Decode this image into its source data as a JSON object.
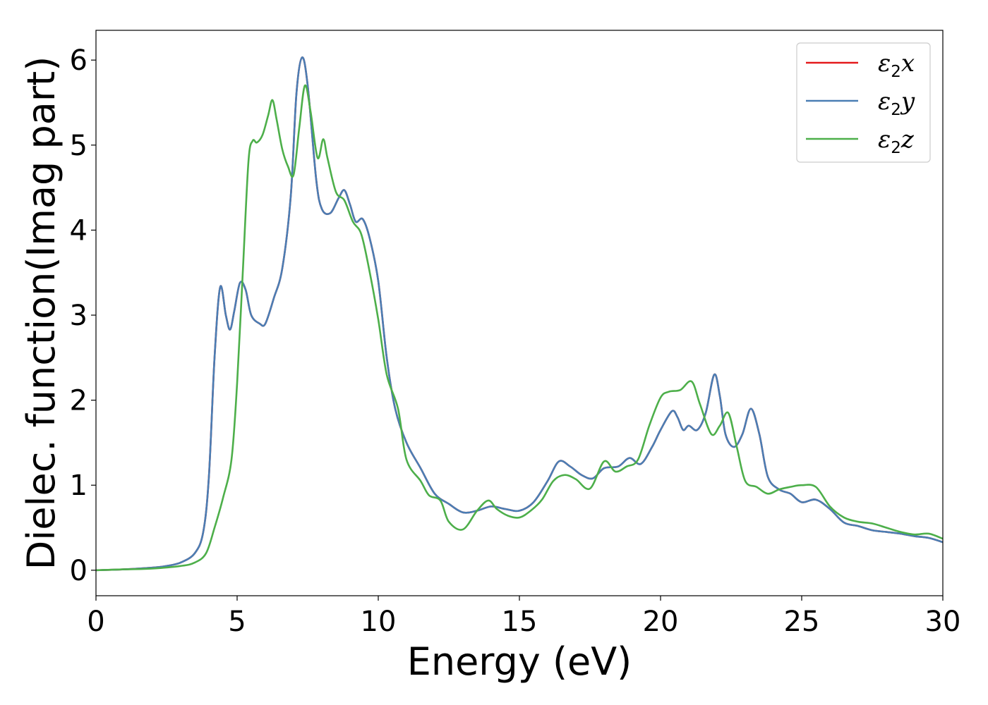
{
  "chart_data": {
    "type": "line",
    "xlabel": "Energy (eV)",
    "ylabel": "Dielec. function(Imag part)",
    "xlim": [
      0,
      30
    ],
    "ylim": [
      -0.3,
      6.35
    ],
    "xticks": [
      0,
      5,
      10,
      15,
      20,
      25,
      30
    ],
    "yticks": [
      0,
      1,
      2,
      3,
      4,
      5,
      6
    ],
    "grid": false,
    "legend_position": "top-right",
    "series": [
      {
        "name": "ε2x",
        "legend_symbol": "ε",
        "legend_sub": "2",
        "legend_var": "x",
        "color": "#e41a1c",
        "points": [
          [
            0,
            0.0
          ],
          [
            1,
            0.01
          ],
          [
            2,
            0.03
          ],
          [
            2.5,
            0.05
          ],
          [
            3,
            0.09
          ],
          [
            3.5,
            0.2
          ],
          [
            3.8,
            0.45
          ],
          [
            4.0,
            1.1
          ],
          [
            4.2,
            2.5
          ],
          [
            4.4,
            3.33
          ],
          [
            4.6,
            3.0
          ],
          [
            4.75,
            2.83
          ],
          [
            4.9,
            3.05
          ],
          [
            5.1,
            3.38
          ],
          [
            5.3,
            3.3
          ],
          [
            5.5,
            3.0
          ],
          [
            5.8,
            2.9
          ],
          [
            6.0,
            2.9
          ],
          [
            6.3,
            3.2
          ],
          [
            6.6,
            3.55
          ],
          [
            6.9,
            4.4
          ],
          [
            7.1,
            5.6
          ],
          [
            7.3,
            6.03
          ],
          [
            7.5,
            5.7
          ],
          [
            7.8,
            4.6
          ],
          [
            8.0,
            4.25
          ],
          [
            8.3,
            4.2
          ],
          [
            8.6,
            4.38
          ],
          [
            8.8,
            4.47
          ],
          [
            9.0,
            4.3
          ],
          [
            9.2,
            4.1
          ],
          [
            9.45,
            4.13
          ],
          [
            9.7,
            3.9
          ],
          [
            10.0,
            3.4
          ],
          [
            10.3,
            2.5
          ],
          [
            10.6,
            1.9
          ],
          [
            11.0,
            1.5
          ],
          [
            11.5,
            1.2
          ],
          [
            12.0,
            0.9
          ],
          [
            12.5,
            0.78
          ],
          [
            13.0,
            0.68
          ],
          [
            13.5,
            0.7
          ],
          [
            14.0,
            0.75
          ],
          [
            14.5,
            0.72
          ],
          [
            15.0,
            0.7
          ],
          [
            15.5,
            0.8
          ],
          [
            16.0,
            1.05
          ],
          [
            16.4,
            1.28
          ],
          [
            16.8,
            1.22
          ],
          [
            17.2,
            1.12
          ],
          [
            17.6,
            1.08
          ],
          [
            18.0,
            1.2
          ],
          [
            18.5,
            1.22
          ],
          [
            18.9,
            1.32
          ],
          [
            19.3,
            1.25
          ],
          [
            19.7,
            1.45
          ],
          [
            20.0,
            1.65
          ],
          [
            20.4,
            1.87
          ],
          [
            20.6,
            1.8
          ],
          [
            20.8,
            1.65
          ],
          [
            21.0,
            1.7
          ],
          [
            21.3,
            1.65
          ],
          [
            21.6,
            1.85
          ],
          [
            21.9,
            2.3
          ],
          [
            22.1,
            2.05
          ],
          [
            22.3,
            1.6
          ],
          [
            22.6,
            1.45
          ],
          [
            22.9,
            1.6
          ],
          [
            23.2,
            1.9
          ],
          [
            23.5,
            1.6
          ],
          [
            23.8,
            1.1
          ],
          [
            24.2,
            0.95
          ],
          [
            24.6,
            0.9
          ],
          [
            25.0,
            0.8
          ],
          [
            25.5,
            0.83
          ],
          [
            26.0,
            0.72
          ],
          [
            26.5,
            0.56
          ],
          [
            27.0,
            0.52
          ],
          [
            27.5,
            0.47
          ],
          [
            28.0,
            0.45
          ],
          [
            28.5,
            0.43
          ],
          [
            29.0,
            0.4
          ],
          [
            29.5,
            0.38
          ],
          [
            30.0,
            0.33
          ]
        ]
      },
      {
        "name": "ε2y",
        "legend_symbol": "ε",
        "legend_sub": "2",
        "legend_var": "y",
        "color": "#4a7eb4",
        "points": [
          [
            0,
            0.0
          ],
          [
            1,
            0.01
          ],
          [
            2,
            0.03
          ],
          [
            2.5,
            0.05
          ],
          [
            3,
            0.09
          ],
          [
            3.5,
            0.2
          ],
          [
            3.8,
            0.45
          ],
          [
            4.0,
            1.1
          ],
          [
            4.2,
            2.5
          ],
          [
            4.4,
            3.33
          ],
          [
            4.6,
            3.0
          ],
          [
            4.75,
            2.83
          ],
          [
            4.9,
            3.05
          ],
          [
            5.1,
            3.38
          ],
          [
            5.3,
            3.3
          ],
          [
            5.5,
            3.0
          ],
          [
            5.8,
            2.9
          ],
          [
            6.0,
            2.9
          ],
          [
            6.3,
            3.2
          ],
          [
            6.6,
            3.55
          ],
          [
            6.9,
            4.4
          ],
          [
            7.1,
            5.6
          ],
          [
            7.3,
            6.03
          ],
          [
            7.5,
            5.7
          ],
          [
            7.8,
            4.6
          ],
          [
            8.0,
            4.25
          ],
          [
            8.3,
            4.2
          ],
          [
            8.6,
            4.38
          ],
          [
            8.8,
            4.47
          ],
          [
            9.0,
            4.3
          ],
          [
            9.2,
            4.1
          ],
          [
            9.45,
            4.13
          ],
          [
            9.7,
            3.9
          ],
          [
            10.0,
            3.4
          ],
          [
            10.3,
            2.5
          ],
          [
            10.6,
            1.9
          ],
          [
            11.0,
            1.5
          ],
          [
            11.5,
            1.2
          ],
          [
            12.0,
            0.9
          ],
          [
            12.5,
            0.78
          ],
          [
            13.0,
            0.68
          ],
          [
            13.5,
            0.7
          ],
          [
            14.0,
            0.75
          ],
          [
            14.5,
            0.72
          ],
          [
            15.0,
            0.7
          ],
          [
            15.5,
            0.8
          ],
          [
            16.0,
            1.05
          ],
          [
            16.4,
            1.28
          ],
          [
            16.8,
            1.22
          ],
          [
            17.2,
            1.12
          ],
          [
            17.6,
            1.08
          ],
          [
            18.0,
            1.2
          ],
          [
            18.5,
            1.22
          ],
          [
            18.9,
            1.32
          ],
          [
            19.3,
            1.25
          ],
          [
            19.7,
            1.45
          ],
          [
            20.0,
            1.65
          ],
          [
            20.4,
            1.87
          ],
          [
            20.6,
            1.8
          ],
          [
            20.8,
            1.65
          ],
          [
            21.0,
            1.7
          ],
          [
            21.3,
            1.65
          ],
          [
            21.6,
            1.85
          ],
          [
            21.9,
            2.3
          ],
          [
            22.1,
            2.05
          ],
          [
            22.3,
            1.6
          ],
          [
            22.6,
            1.45
          ],
          [
            22.9,
            1.6
          ],
          [
            23.2,
            1.9
          ],
          [
            23.5,
            1.6
          ],
          [
            23.8,
            1.1
          ],
          [
            24.2,
            0.95
          ],
          [
            24.6,
            0.9
          ],
          [
            25.0,
            0.8
          ],
          [
            25.5,
            0.83
          ],
          [
            26.0,
            0.72
          ],
          [
            26.5,
            0.56
          ],
          [
            27.0,
            0.52
          ],
          [
            27.5,
            0.47
          ],
          [
            28.0,
            0.45
          ],
          [
            28.5,
            0.43
          ],
          [
            29.0,
            0.4
          ],
          [
            29.5,
            0.38
          ],
          [
            30.0,
            0.33
          ]
        ]
      },
      {
        "name": "ε2z",
        "legend_symbol": "ε",
        "legend_sub": "2",
        "legend_var": "z",
        "color": "#4daf4a",
        "points": [
          [
            0,
            0.0
          ],
          [
            1,
            0.01
          ],
          [
            2,
            0.02
          ],
          [
            3,
            0.05
          ],
          [
            3.5,
            0.09
          ],
          [
            3.9,
            0.2
          ],
          [
            4.2,
            0.5
          ],
          [
            4.5,
            0.85
          ],
          [
            4.8,
            1.3
          ],
          [
            5.0,
            2.2
          ],
          [
            5.2,
            3.5
          ],
          [
            5.4,
            4.8
          ],
          [
            5.55,
            5.05
          ],
          [
            5.7,
            5.03
          ],
          [
            5.9,
            5.12
          ],
          [
            6.1,
            5.35
          ],
          [
            6.25,
            5.53
          ],
          [
            6.4,
            5.3
          ],
          [
            6.6,
            4.95
          ],
          [
            6.8,
            4.75
          ],
          [
            7.0,
            4.65
          ],
          [
            7.2,
            5.2
          ],
          [
            7.4,
            5.7
          ],
          [
            7.6,
            5.4
          ],
          [
            7.85,
            4.85
          ],
          [
            8.05,
            5.07
          ],
          [
            8.2,
            4.85
          ],
          [
            8.5,
            4.45
          ],
          [
            8.8,
            4.35
          ],
          [
            9.1,
            4.1
          ],
          [
            9.4,
            3.95
          ],
          [
            9.7,
            3.5
          ],
          [
            10.0,
            2.95
          ],
          [
            10.3,
            2.3
          ],
          [
            10.7,
            1.9
          ],
          [
            11.0,
            1.3
          ],
          [
            11.5,
            1.05
          ],
          [
            11.8,
            0.88
          ],
          [
            12.2,
            0.82
          ],
          [
            12.5,
            0.57
          ],
          [
            13.0,
            0.48
          ],
          [
            13.5,
            0.7
          ],
          [
            13.9,
            0.82
          ],
          [
            14.2,
            0.72
          ],
          [
            14.6,
            0.64
          ],
          [
            15.0,
            0.62
          ],
          [
            15.4,
            0.7
          ],
          [
            15.8,
            0.83
          ],
          [
            16.2,
            1.05
          ],
          [
            16.6,
            1.12
          ],
          [
            17.0,
            1.07
          ],
          [
            17.5,
            0.96
          ],
          [
            18.0,
            1.28
          ],
          [
            18.4,
            1.16
          ],
          [
            18.8,
            1.22
          ],
          [
            19.2,
            1.3
          ],
          [
            19.6,
            1.7
          ],
          [
            20.0,
            2.03
          ],
          [
            20.3,
            2.1
          ],
          [
            20.7,
            2.12
          ],
          [
            21.1,
            2.22
          ],
          [
            21.4,
            1.95
          ],
          [
            21.8,
            1.6
          ],
          [
            22.1,
            1.7
          ],
          [
            22.4,
            1.85
          ],
          [
            22.7,
            1.45
          ],
          [
            23.0,
            1.05
          ],
          [
            23.4,
            0.98
          ],
          [
            23.8,
            0.9
          ],
          [
            24.2,
            0.95
          ],
          [
            24.6,
            0.98
          ],
          [
            25.0,
            1.0
          ],
          [
            25.5,
            0.98
          ],
          [
            26.0,
            0.75
          ],
          [
            26.5,
            0.62
          ],
          [
            27.0,
            0.57
          ],
          [
            27.5,
            0.55
          ],
          [
            28.0,
            0.5
          ],
          [
            28.5,
            0.45
          ],
          [
            29.0,
            0.42
          ],
          [
            29.5,
            0.43
          ],
          [
            30.0,
            0.37
          ]
        ]
      }
    ]
  }
}
